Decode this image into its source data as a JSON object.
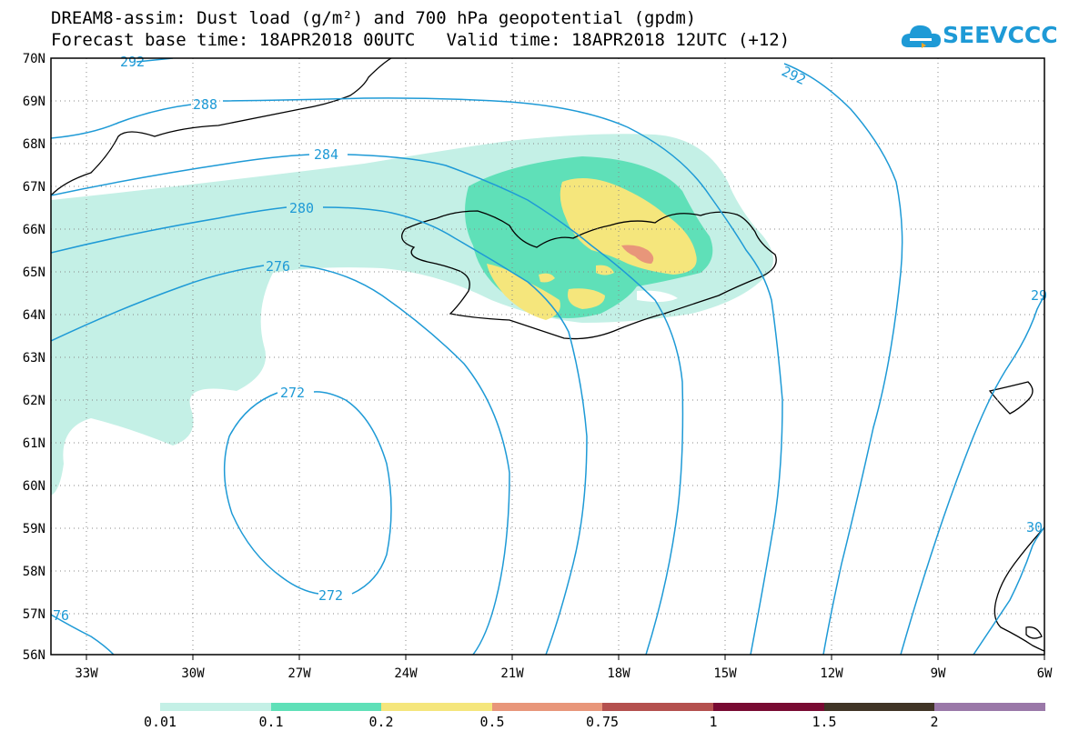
{
  "title": {
    "line1": "DREAM8-assim: Dust load (g/m²) and 700 hPa geopotential (gpdm)",
    "line2": "Forecast base time: 18APR2018 00UTC   Valid time: 18APR2018 12UTC (+12)"
  },
  "logo": {
    "text": "SEEVCCC"
  },
  "axes": {
    "lat_labels": [
      "70N",
      "69N",
      "68N",
      "67N",
      "66N",
      "65N",
      "64N",
      "63N",
      "62N",
      "61N",
      "60N",
      "59N",
      "58N",
      "57N",
      "56N"
    ],
    "lon_labels": [
      "33W",
      "30W",
      "27W",
      "24W",
      "21W",
      "18W",
      "15W",
      "12W",
      "9W",
      "6W"
    ]
  },
  "contours": {
    "color": "#1e9ad6",
    "labels": [
      "292",
      "288",
      "284",
      "280",
      "276",
      "272",
      "272",
      "292",
      "76",
      "29",
      "30"
    ]
  },
  "colorbar": {
    "colors": [
      "#c4f0e6",
      "#5fe0b8",
      "#f5e67c",
      "#e8967a",
      "#b4504e",
      "#780a32",
      "#403426",
      "#9a78a8"
    ],
    "labels": [
      "0.01",
      "0.1",
      "0.2",
      "0.5",
      "0.75",
      "1",
      "1.5",
      "2"
    ]
  }
}
